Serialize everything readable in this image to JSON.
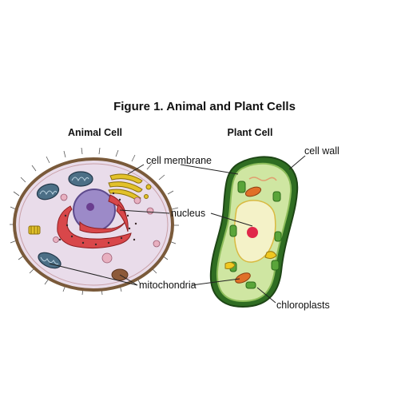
{
  "figure": {
    "title": "Figure 1. Animal and Plant Cells",
    "animal_cell_heading": "Animal Cell",
    "plant_cell_heading": "Plant Cell"
  },
  "labels": {
    "cell_membrane": "cell membrane",
    "cell_wall": "cell wall",
    "nucleus": "nucleus",
    "mitochondria": "mitochondria",
    "chloroplasts": "chloroplasts"
  },
  "colors": {
    "animal_cytoplasm": "#e9dcea",
    "animal_membrane": "#7a5a3a",
    "nucleus": "#9c8ac8",
    "nucleolus": "#6a3d8f",
    "er": "#d8474a",
    "golgi": "#e2c12a",
    "mitochondria": "#4c6f86",
    "plant_wall": "#2f6d22",
    "plant_cytoplasm": "#cfe6a2",
    "vacuole": "#f4f2c8",
    "plant_nucleolus": "#e0284a",
    "chloroplast": "#5aa53a",
    "plant_mitochondria": "#e07028"
  }
}
